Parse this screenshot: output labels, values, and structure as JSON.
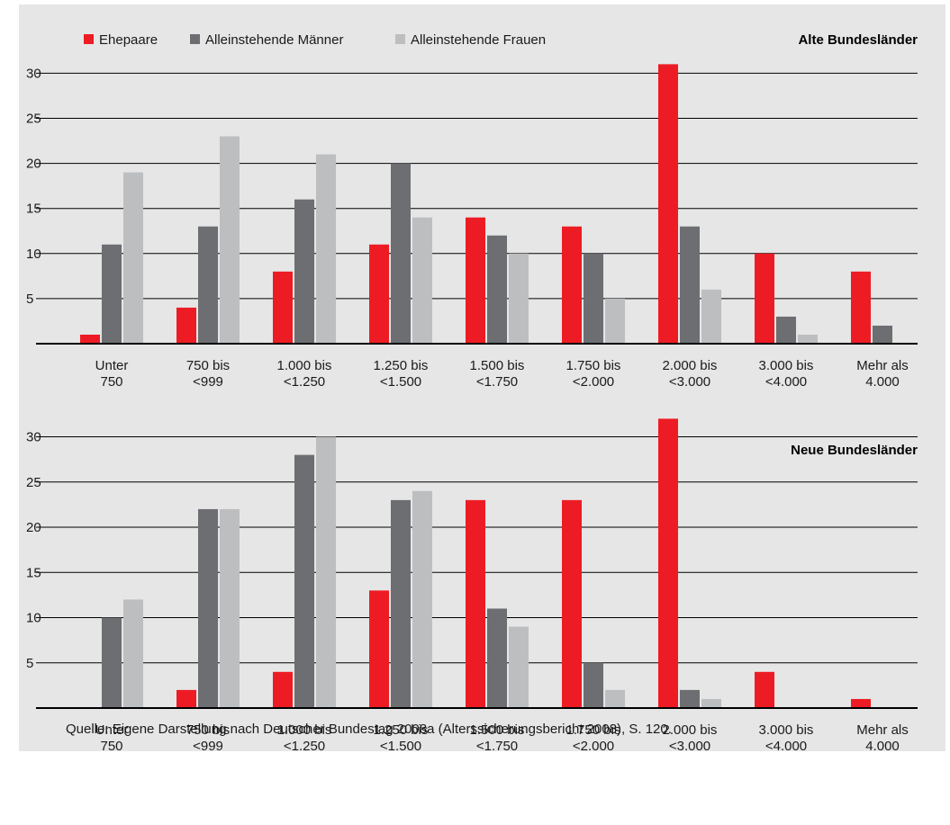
{
  "colors": {
    "background": "#e6e6e6",
    "ehepaare": "#ed1c24",
    "maenner": "#6d6e71",
    "frauen": "#bcbec0",
    "grid": "#000000"
  },
  "legend": {
    "items": [
      {
        "label": "Ehepaare",
        "color": "#ed1c24"
      },
      {
        "label": "Alleinstehende Männer",
        "color": "#6d6e71"
      },
      {
        "label": "Alleinstehende Frauen",
        "color": "#bcbec0"
      }
    ]
  },
  "source": "Quelle: Eigene Darstellung nach Deutscher Bundestag 2008a (Alterssicherungsbericht 2008), S. 120.",
  "chart_data": [
    {
      "type": "bar",
      "title": "Alte Bundesländer",
      "xlabel": "",
      "ylabel": "",
      "ylim": [
        0,
        30
      ],
      "yticks": [
        5,
        10,
        15,
        20,
        25,
        30
      ],
      "grid": true,
      "legend_position": "top-left",
      "categories": [
        [
          "Unter",
          "750"
        ],
        [
          "750 bis",
          "<999"
        ],
        [
          "1.000 bis",
          "<1.250"
        ],
        [
          "1.250 bis",
          "<1.500"
        ],
        [
          "1.500 bis",
          "<1.750"
        ],
        [
          "1.750 bis",
          "<2.000"
        ],
        [
          "2.000 bis",
          "<3.000"
        ],
        [
          "3.000 bis",
          "<4.000"
        ],
        [
          "Mehr als",
          "4.000"
        ]
      ],
      "series": [
        {
          "name": "Ehepaare",
          "values": [
            1,
            4,
            8,
            11,
            14,
            13,
            31,
            10,
            8
          ]
        },
        {
          "name": "Alleinstehende Männer",
          "values": [
            11,
            13,
            16,
            20,
            12,
            10,
            13,
            3,
            2
          ]
        },
        {
          "name": "Alleinstehende Frauen",
          "values": [
            19,
            23,
            21,
            14,
            10,
            5,
            6,
            1,
            0
          ]
        }
      ]
    },
    {
      "type": "bar",
      "title": "Neue Bundesländer",
      "xlabel": "",
      "ylabel": "",
      "ylim": [
        0,
        30
      ],
      "yticks": [
        5,
        10,
        15,
        20,
        25,
        30
      ],
      "grid": true,
      "categories": [
        [
          "Unter",
          "750"
        ],
        [
          "750 bis",
          "<999"
        ],
        [
          "1.000 bis",
          "<1.250"
        ],
        [
          "1.250 bis",
          "<1.500"
        ],
        [
          "1.500 bis",
          "<1.750"
        ],
        [
          "1.750 bis",
          "<2.000"
        ],
        [
          "2.000 bis",
          "<3.000"
        ],
        [
          "3.000 bis",
          "<4.000"
        ],
        [
          "Mehr als",
          "4.000"
        ]
      ],
      "series": [
        {
          "name": "Ehepaare",
          "values": [
            0,
            2,
            4,
            13,
            23,
            23,
            32,
            4,
            1
          ]
        },
        {
          "name": "Alleinstehende Männer",
          "values": [
            10,
            22,
            28,
            23,
            11,
            5,
            2,
            0,
            0
          ]
        },
        {
          "name": "Alleinstehende Frauen",
          "values": [
            12,
            22,
            30,
            24,
            9,
            2,
            1,
            0,
            0
          ]
        }
      ]
    }
  ]
}
